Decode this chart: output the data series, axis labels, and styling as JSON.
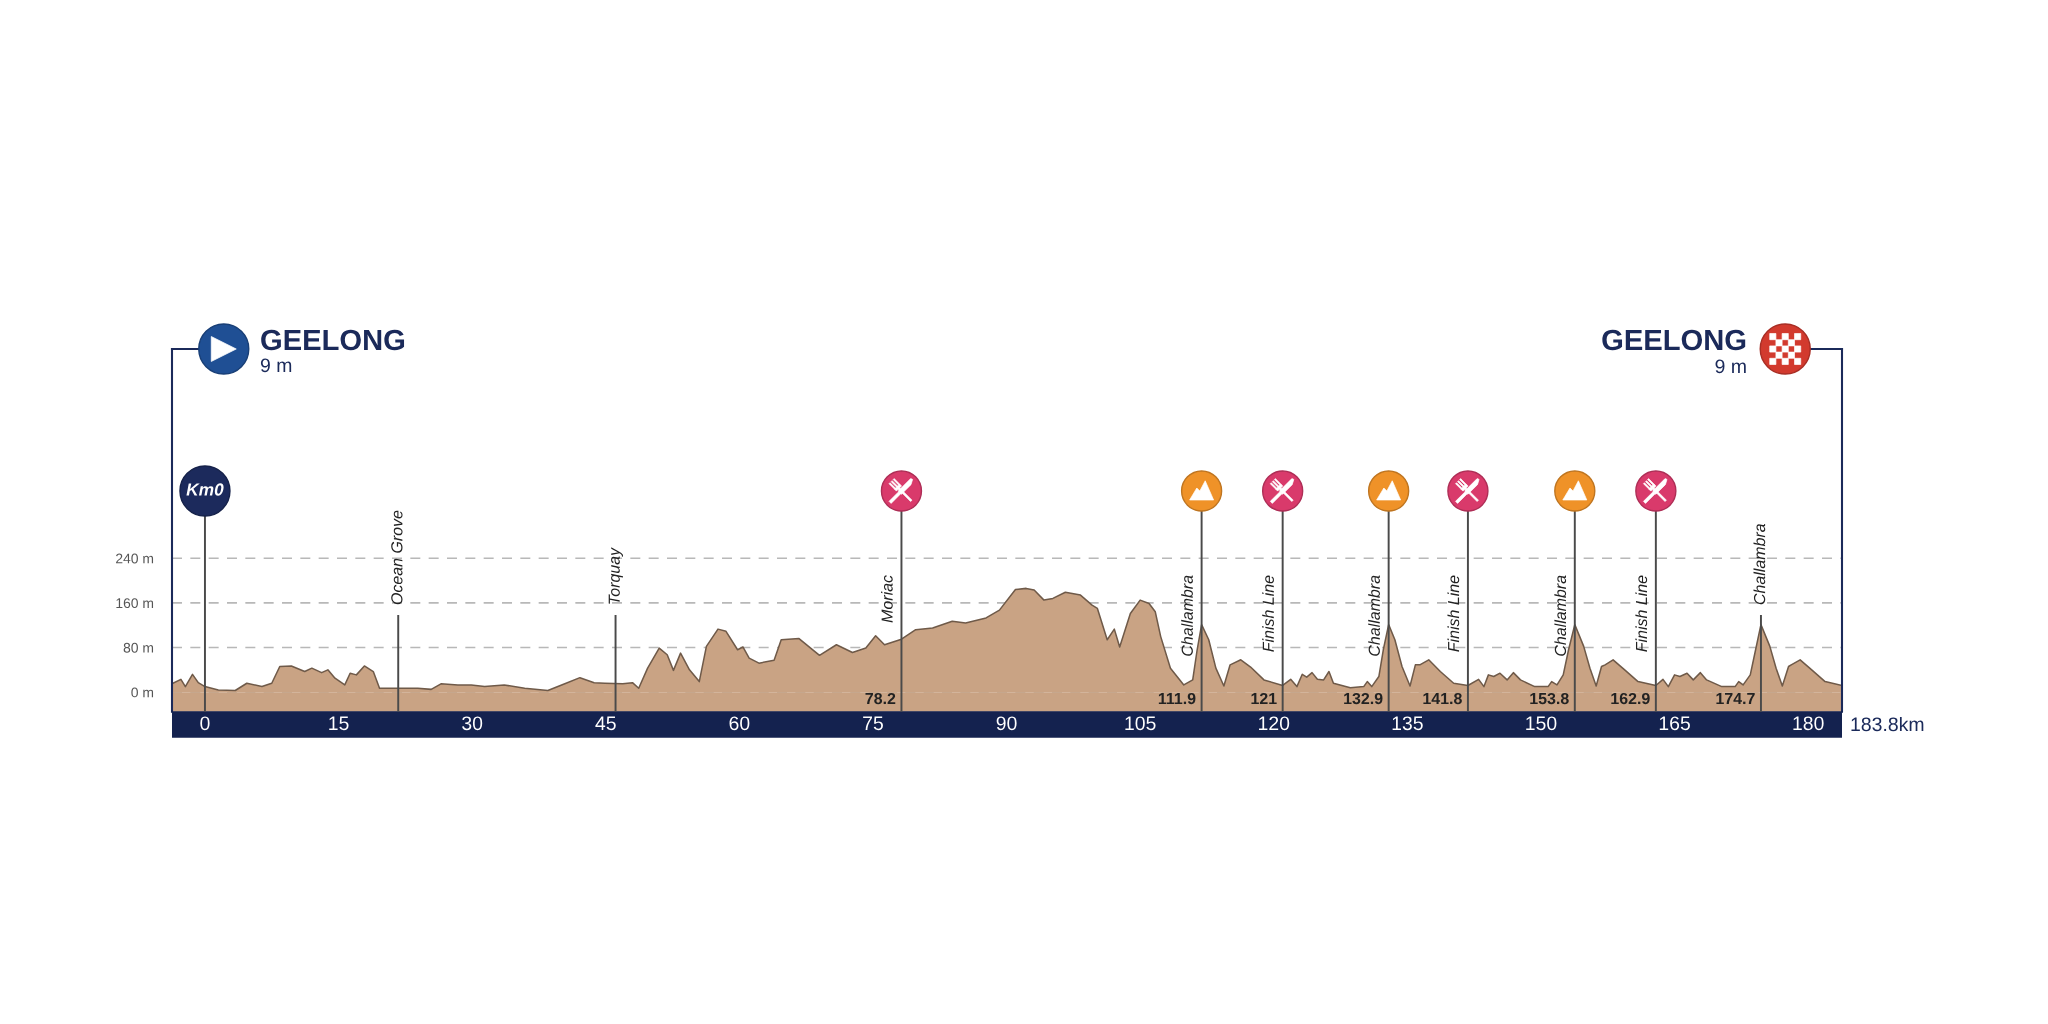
{
  "chart_data": {
    "type": "area",
    "color": "#c9a384",
    "x": [
      -3.7,
      -2.7,
      -2.2,
      -1.4,
      -0.75,
      0,
      1.5,
      3.4,
      4.7,
      6.4,
      7.5,
      8.4,
      9.7,
      11.2,
      12.0,
      13.1,
      13.8,
      14.6,
      15.7,
      16.3,
      17.0,
      17.9,
      18.9,
      19.6,
      21.7,
      23.9,
      25.4,
      26.5,
      28.4,
      29.9,
      31.4,
      33.6,
      35.9,
      38.5,
      40.4,
      42.1,
      43.7,
      44.9,
      46.9,
      48.0,
      48.7,
      49.7,
      51.0,
      51.9,
      52.6,
      53.4,
      54.4,
      55.5,
      56.3,
      57.6,
      58.5,
      59.8,
      60.4,
      61.1,
      62.2,
      63.9,
      64.7,
      66.7,
      69.0,
      70.9,
      72.7,
      74.2,
      75.3,
      76.3,
      78.2,
      79.8,
      81.7,
      83.9,
      85.4,
      87.7,
      89.2,
      91.0,
      92.2,
      93.1,
      94.2,
      95.2,
      96.6,
      98.3,
      99.6,
      100.2,
      101.3,
      102.1,
      102.7,
      103.9,
      105.0,
      106.0,
      106.7,
      107.3,
      108.4,
      109.9,
      110.9,
      111.4,
      111.9,
      112.7,
      113.5,
      114.4,
      115.1,
      116.3,
      117.4,
      118.9,
      121.0,
      121.9,
      122.6,
      123.2,
      123.7,
      124.3,
      124.9,
      125.6,
      126.2,
      126.7,
      128.6,
      130.1,
      130.5,
      131.0,
      131.8,
      132.3,
      132.9,
      133.6,
      134.4,
      135.3,
      135.9,
      136.4,
      137.4,
      138.7,
      140.2,
      141.8,
      143.0,
      143.6,
      144.1,
      144.7,
      145.4,
      146.2,
      146.9,
      147.7,
      149.3,
      150.8,
      151.2,
      151.8,
      152.5,
      153.1,
      153.8,
      154.8,
      155.5,
      156.2,
      156.8,
      157.2,
      158.1,
      159.4,
      160.9,
      162.9,
      163.7,
      164.3,
      165.0,
      165.6,
      166.4,
      167.1,
      167.9,
      168.6,
      170.3,
      171.8,
      172.2,
      172.7,
      173.5,
      174.1,
      174.7,
      175.7,
      176.4,
      177.1,
      177.8,
      178.1,
      179.1,
      180.4,
      181.9,
      183.8
    ],
    "values": [
      15,
      23,
      10,
      32,
      17,
      10,
      4,
      3,
      16,
      10,
      16,
      46,
      47,
      37,
      43,
      35,
      40,
      25,
      13,
      34,
      31,
      47,
      37,
      7,
      7,
      7,
      5,
      15,
      13,
      13,
      10,
      13,
      7,
      3,
      15,
      26,
      17,
      16,
      15,
      17,
      7,
      43,
      79,
      67,
      39,
      70,
      40,
      19,
      82,
      113,
      109,
      76,
      81,
      61,
      52,
      57,
      94,
      96,
      66,
      85,
      71,
      79,
      101,
      85,
      95,
      112,
      115,
      127,
      124,
      133,
      147,
      184,
      186,
      183,
      165,
      168,
      179,
      174,
      156,
      150,
      94,
      113,
      81,
      141,
      165,
      159,
      144,
      100,
      43,
      13,
      22,
      76,
      121,
      94,
      43,
      11,
      49,
      58,
      45,
      22,
      12,
      23,
      10,
      32,
      27,
      35,
      23,
      22,
      37,
      16,
      8,
      10,
      19,
      10,
      28,
      76,
      121,
      94,
      46,
      11,
      49,
      49,
      58,
      37,
      16,
      12,
      23,
      10,
      31,
      28,
      34,
      22,
      35,
      22,
      10,
      10,
      19,
      13,
      31,
      76,
      121,
      82,
      43,
      11,
      46,
      49,
      58,
      40,
      19,
      12,
      23,
      10,
      31,
      28,
      34,
      22,
      35,
      22,
      10,
      10,
      19,
      13,
      31,
      76,
      121,
      82,
      43,
      11,
      46,
      49,
      58,
      40,
      19,
      12
    ],
    "xlim": [
      -3.7,
      183.8
    ],
    "ylim": [
      -35,
      615
    ],
    "xticks": [
      0,
      15,
      30,
      45,
      60,
      75,
      90,
      105,
      120,
      135,
      150,
      165,
      180
    ],
    "yticks": [
      {
        "value": 0,
        "label": "0 m"
      },
      {
        "value": 80,
        "label": "80 m"
      },
      {
        "value": 160,
        "label": "160 m"
      },
      {
        "value": 240,
        "label": "240 m"
      }
    ],
    "grid": "y",
    "bands": [
      {
        "axis": "y",
        "from": -35,
        "to": 0,
        "color": "#c9a384"
      }
    ],
    "ref_lines": [
      {
        "axis": "x",
        "value": 0,
        "label": "Km0"
      },
      {
        "axis": "x",
        "value": 21.7,
        "label": "Ocean Grove"
      },
      {
        "axis": "x",
        "value": 46.1,
        "label": "Torquay"
      },
      {
        "axis": "x",
        "value": 78.2,
        "label": "Moriac"
      },
      {
        "axis": "x",
        "value": 111.9,
        "label": "Challambra"
      },
      {
        "axis": "x",
        "value": 121,
        "label": "Finish Line"
      },
      {
        "axis": "x",
        "value": 132.9,
        "label": "Challambra"
      },
      {
        "axis": "x",
        "value": 141.8,
        "label": "Finish Line"
      },
      {
        "axis": "x",
        "value": 153.8,
        "label": "Challambra"
      },
      {
        "axis": "x",
        "value": 162.9,
        "label": "Finish Line"
      },
      {
        "axis": "x",
        "value": 174.7,
        "label": "Challambra"
      }
    ],
    "annotations": [
      "GEELONG",
      "9 m",
      "GEELONG",
      "9 m",
      "183.8km",
      {
        "text": "78.2",
        "x": 78.2
      },
      {
        "text": "111.9",
        "x": 111.9
      },
      {
        "text": "121",
        "x": 121
      },
      {
        "text": "132.9",
        "x": 132.9
      },
      {
        "text": "141.8",
        "x": 141.8
      },
      {
        "text": "153.8",
        "x": 153.8
      },
      {
        "text": "162.9",
        "x": 162.9
      },
      {
        "text": "174.7",
        "x": 174.7
      }
    ]
  }
}
